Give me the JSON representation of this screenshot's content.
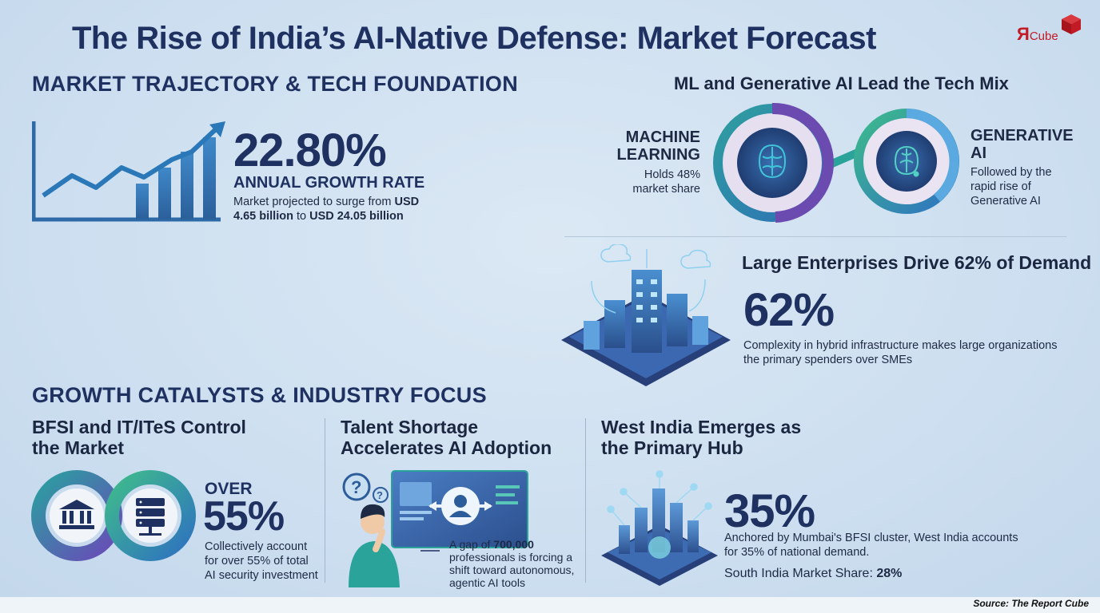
{
  "title": "The Rise of India’s AI-Native Defense: Market Forecast",
  "logo": {
    "letter": "Я",
    "word": "Cube",
    "icon": "red-cube-icon"
  },
  "sections": {
    "trajectory": "MARKET TRAJECTORY & TECH FOUNDATION",
    "catalysts": "GROWTH CATALYSTS & INDUSTRY FOCUS"
  },
  "growth": {
    "percent": "22.80%",
    "label": "ANNUAL GROWTH RATE",
    "desc_prefix": "Market projected to surge from ",
    "desc_bold1": "USD 4.65 billion",
    "desc_mid": " to ",
    "desc_bold2": "USD 24.05 billion",
    "icon": "rising-line-chart-icon"
  },
  "tech_mix": {
    "title": "ML and Generative AI Lead the Tech Mix",
    "ml": {
      "label_line1": "MACHINE",
      "label_line2": "LEARNING",
      "desc_line1": "Holds 48%",
      "desc_line2": "market share",
      "share": 0.48,
      "icon": "brain-chip-icon"
    },
    "genai": {
      "label_line1": "GENERATIVE",
      "label_line2": "AI",
      "desc_line1": "Followed by the",
      "desc_line2": "rapid rise of",
      "desc_line3": "Generative AI",
      "icon": "brain-circuit-icon"
    }
  },
  "enterprise": {
    "title": "Large Enterprises Drive 62% of Demand",
    "percent": "62%",
    "desc_line1": "Complexity in hybrid infrastructure makes large organizations",
    "desc_line2": "the primary spenders over SMEs",
    "icon": "isometric-data-center-icon"
  },
  "bfsi": {
    "title_line1": "BFSI and IT/ITeS Control",
    "title_line2": "the Market",
    "over": "OVER",
    "percent": "55%",
    "desc_line1": "Collectively account",
    "desc_line2": "for over 55% of total",
    "desc_line3": "AI security investment",
    "icon_bank": "bank-icon",
    "icon_server": "server-icon"
  },
  "talent": {
    "title_line1": "Talent Shortage",
    "title_line2": "Accelerates AI Adoption",
    "desc_line1_prefix": "A gap of ",
    "desc_line1_bold": "700,000",
    "desc_line2": "professionals is forcing a",
    "desc_line3": "shift toward autonomous,",
    "desc_line4": "agentic AI tools",
    "icon": "confused-person-screen-icon"
  },
  "west": {
    "title_line1": "West India Emerges as",
    "title_line2": "the Primary Hub",
    "percent": "35%",
    "desc_line1": "Anchored by Mumbai's BFSI cluster, West India accounts",
    "desc_line2": "for 35% of national demand.",
    "south_label": "South India Market Share: ",
    "south_value": "28%",
    "icon": "connected-city-icon"
  },
  "source": "Source: The Report Cube",
  "colors": {
    "navy": "#1e3160",
    "teal": "#2aa39a",
    "purple": "#5b3fa0",
    "blue": "#3f7fd0",
    "brand_red": "#c21b25"
  }
}
